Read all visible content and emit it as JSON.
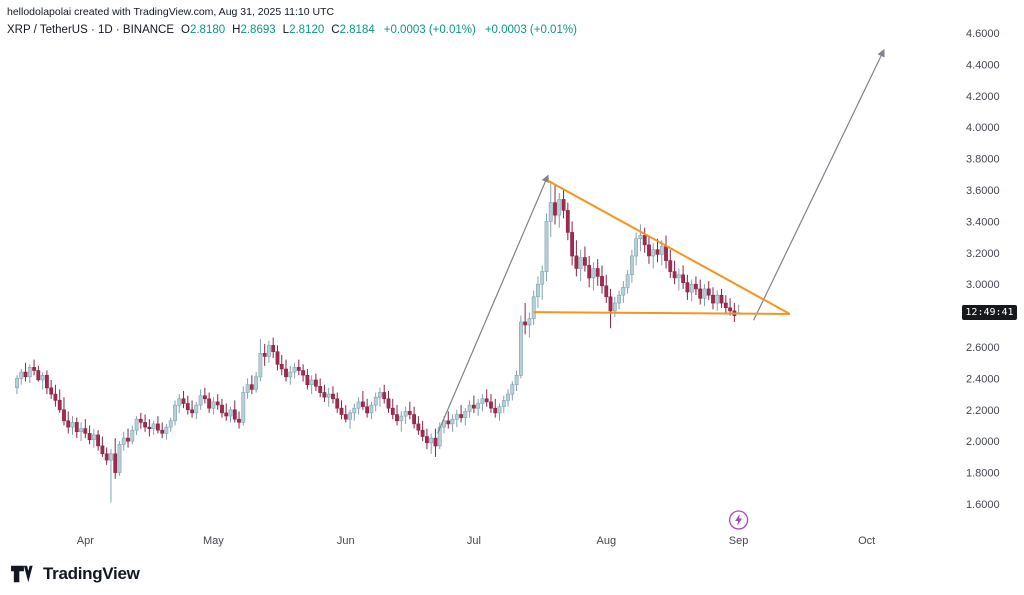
{
  "page": {
    "attribution": "hellodolapolai created with TradingView.com, Aug 31, 2025 11:10 UTC",
    "symbol_title": "XRP / TetherUS · 1D · BINANCE",
    "ohlc": {
      "o_label": "O",
      "o": "2.8180",
      "h_label": "H",
      "h": "2.8693",
      "l_label": "L",
      "l": "2.8120",
      "c_label": "C",
      "c": "2.8184"
    },
    "change_1": "+0.0003 (+0.01%)",
    "change_2": "+0.0003 (+0.01%)",
    "countdown": "12:49:41",
    "logo_text": "TradingView"
  },
  "colors": {
    "up_fill": "#b7cfd6",
    "up_border": "#7fa3ad",
    "down_fill": "#a02b4e",
    "down_border": "#8b2345",
    "pattern_line": "#f7941e",
    "trend_line": "#7e838c",
    "badge_bg": "#16181c",
    "badge_text": "#ffffff",
    "axis_text": "#44474f",
    "accent_marker": "#ab47bc",
    "ohlc_value": "#089981",
    "text": "#131722"
  },
  "chart_data": {
    "type": "candlestick",
    "title": "XRP / TetherUS · 1D · BINANCE",
    "exchange": "BINANCE",
    "interval": "1D",
    "last_price": "2.8184",
    "y_axis": {
      "min": 1.6,
      "max": 4.6,
      "step": 0.2,
      "tick_labels": [
        "4.6000",
        "4.4000",
        "4.2000",
        "4.0000",
        "3.8000",
        "3.6000",
        "3.4000",
        "3.2000",
        "3.0000",
        "2.8000",
        "2.6000",
        "2.4000",
        "2.2000",
        "2.0000",
        "1.8000",
        "1.6000"
      ]
    },
    "x_axis": {
      "month_ticks": [
        {
          "label": "Apr",
          "day": 16
        },
        {
          "label": "May",
          "day": 46
        },
        {
          "label": "Jun",
          "day": 77
        },
        {
          "label": "Jul",
          "day": 107
        },
        {
          "label": "Aug",
          "day": 138
        },
        {
          "label": "Sep",
          "day": 169
        },
        {
          "label": "Oct",
          "day": 199
        }
      ]
    },
    "candles": [
      [
        2.34,
        2.42,
        2.3,
        2.4
      ],
      [
        2.4,
        2.46,
        2.36,
        2.44
      ],
      [
        2.44,
        2.5,
        2.38,
        2.41
      ],
      [
        2.41,
        2.49,
        2.37,
        2.47
      ],
      [
        2.47,
        2.52,
        2.42,
        2.45
      ],
      [
        2.45,
        2.48,
        2.38,
        2.39
      ],
      [
        2.39,
        2.44,
        2.33,
        2.42
      ],
      [
        2.42,
        2.45,
        2.3,
        2.34
      ],
      [
        2.34,
        2.39,
        2.27,
        2.3
      ],
      [
        2.3,
        2.36,
        2.22,
        2.26
      ],
      [
        2.26,
        2.33,
        2.18,
        2.2
      ],
      [
        2.2,
        2.28,
        2.1,
        2.13
      ],
      [
        2.13,
        2.19,
        2.05,
        2.09
      ],
      [
        2.09,
        2.16,
        2.04,
        2.12
      ],
      [
        2.12,
        2.15,
        2.02,
        2.06
      ],
      [
        2.06,
        2.12,
        2.0,
        2.08
      ],
      [
        2.08,
        2.14,
        2.02,
        2.05
      ],
      [
        2.05,
        2.1,
        1.98,
        2.01
      ],
      [
        2.01,
        2.08,
        1.96,
        2.04
      ],
      [
        2.04,
        2.07,
        1.94,
        1.97
      ],
      [
        1.97,
        2.03,
        1.9,
        1.92
      ],
      [
        1.92,
        1.96,
        1.85,
        1.88
      ],
      [
        1.88,
        1.95,
        1.61,
        1.92
      ],
      [
        1.92,
        2.02,
        1.76,
        1.8
      ],
      [
        1.8,
        2.0,
        1.78,
        1.98
      ],
      [
        1.98,
        2.06,
        1.94,
        2.02
      ],
      [
        2.02,
        2.08,
        1.96,
        2.0
      ],
      [
        2.0,
        2.1,
        1.98,
        2.07
      ],
      [
        2.07,
        2.16,
        2.04,
        2.14
      ],
      [
        2.14,
        2.18,
        2.08,
        2.12
      ],
      [
        2.12,
        2.17,
        2.06,
        2.09
      ],
      [
        2.09,
        2.14,
        2.03,
        2.08
      ],
      [
        2.08,
        2.13,
        2.04,
        2.11
      ],
      [
        2.11,
        2.16,
        2.05,
        2.07
      ],
      [
        2.07,
        2.12,
        2.02,
        2.05
      ],
      [
        2.05,
        2.11,
        2.01,
        2.09
      ],
      [
        2.09,
        2.15,
        2.06,
        2.13
      ],
      [
        2.13,
        2.26,
        2.1,
        2.23
      ],
      [
        2.23,
        2.3,
        2.18,
        2.27
      ],
      [
        2.27,
        2.32,
        2.21,
        2.24
      ],
      [
        2.24,
        2.29,
        2.17,
        2.2
      ],
      [
        2.2,
        2.26,
        2.15,
        2.18
      ],
      [
        2.18,
        2.25,
        2.14,
        2.23
      ],
      [
        2.23,
        2.33,
        2.2,
        2.29
      ],
      [
        2.29,
        2.34,
        2.24,
        2.27
      ],
      [
        2.27,
        2.31,
        2.18,
        2.21
      ],
      [
        2.21,
        2.28,
        2.17,
        2.25
      ],
      [
        2.25,
        2.3,
        2.2,
        2.23
      ],
      [
        2.23,
        2.27,
        2.15,
        2.18
      ],
      [
        2.18,
        2.24,
        2.13,
        2.16
      ],
      [
        2.16,
        2.22,
        2.12,
        2.2
      ],
      [
        2.2,
        2.26,
        2.12,
        2.14
      ],
      [
        2.14,
        2.19,
        2.08,
        2.12
      ],
      [
        2.12,
        2.35,
        2.1,
        2.31
      ],
      [
        2.31,
        2.4,
        2.27,
        2.36
      ],
      [
        2.36,
        2.42,
        2.3,
        2.33
      ],
      [
        2.33,
        2.44,
        2.31,
        2.41
      ],
      [
        2.41,
        2.65,
        2.38,
        2.56
      ],
      [
        2.56,
        2.62,
        2.48,
        2.54
      ],
      [
        2.54,
        2.64,
        2.5,
        2.61
      ],
      [
        2.61,
        2.66,
        2.53,
        2.57
      ],
      [
        2.57,
        2.61,
        2.45,
        2.49
      ],
      [
        2.49,
        2.55,
        2.42,
        2.46
      ],
      [
        2.46,
        2.52,
        2.38,
        2.41
      ],
      [
        2.41,
        2.48,
        2.36,
        2.44
      ],
      [
        2.44,
        2.5,
        2.4,
        2.47
      ],
      [
        2.47,
        2.52,
        2.42,
        2.45
      ],
      [
        2.45,
        2.49,
        2.38,
        2.42
      ],
      [
        2.42,
        2.46,
        2.33,
        2.36
      ],
      [
        2.36,
        2.42,
        2.3,
        2.39
      ],
      [
        2.39,
        2.43,
        2.32,
        2.35
      ],
      [
        2.35,
        2.4,
        2.28,
        2.31
      ],
      [
        2.31,
        2.36,
        2.25,
        2.28
      ],
      [
        2.28,
        2.34,
        2.22,
        2.3
      ],
      [
        2.3,
        2.35,
        2.24,
        2.27
      ],
      [
        2.27,
        2.31,
        2.18,
        2.21
      ],
      [
        2.21,
        2.26,
        2.14,
        2.17
      ],
      [
        2.17,
        2.23,
        2.12,
        2.14
      ],
      [
        2.14,
        2.2,
        2.08,
        2.18
      ],
      [
        2.18,
        2.24,
        2.13,
        2.21
      ],
      [
        2.21,
        2.28,
        2.17,
        2.25
      ],
      [
        2.25,
        2.32,
        2.2,
        2.22
      ],
      [
        2.22,
        2.27,
        2.15,
        2.18
      ],
      [
        2.18,
        2.25,
        2.14,
        2.23
      ],
      [
        2.23,
        2.31,
        2.19,
        2.28
      ],
      [
        2.28,
        2.34,
        2.22,
        2.31
      ],
      [
        2.31,
        2.36,
        2.24,
        2.27
      ],
      [
        2.27,
        2.32,
        2.18,
        2.21
      ],
      [
        2.21,
        2.27,
        2.14,
        2.17
      ],
      [
        2.17,
        2.23,
        2.1,
        2.13
      ],
      [
        2.13,
        2.19,
        2.06,
        2.16
      ],
      [
        2.16,
        2.22,
        2.11,
        2.19
      ],
      [
        2.19,
        2.25,
        2.14,
        2.17
      ],
      [
        2.17,
        2.22,
        2.08,
        2.11
      ],
      [
        2.11,
        2.16,
        2.04,
        2.07
      ],
      [
        2.07,
        2.13,
        2.0,
        2.03
      ],
      [
        2.03,
        2.08,
        1.95,
        1.99
      ],
      [
        1.99,
        2.05,
        1.92,
        2.02
      ],
      [
        2.02,
        2.08,
        1.9,
        1.97
      ],
      [
        1.97,
        2.12,
        1.95,
        2.09
      ],
      [
        2.09,
        2.16,
        2.05,
        2.13
      ],
      [
        2.13,
        2.19,
        2.08,
        2.11
      ],
      [
        2.11,
        2.17,
        2.06,
        2.14
      ],
      [
        2.14,
        2.2,
        2.09,
        2.17
      ],
      [
        2.17,
        2.23,
        2.12,
        2.15
      ],
      [
        2.15,
        2.21,
        2.1,
        2.19
      ],
      [
        2.19,
        2.26,
        2.15,
        2.23
      ],
      [
        2.23,
        2.29,
        2.18,
        2.21
      ],
      [
        2.21,
        2.27,
        2.16,
        2.24
      ],
      [
        2.24,
        2.3,
        2.19,
        2.27
      ],
      [
        2.27,
        2.33,
        2.22,
        2.25
      ],
      [
        2.25,
        2.3,
        2.18,
        2.21
      ],
      [
        2.21,
        2.27,
        2.15,
        2.18
      ],
      [
        2.18,
        2.24,
        2.13,
        2.22
      ],
      [
        2.22,
        2.29,
        2.18,
        2.26
      ],
      [
        2.26,
        2.33,
        2.22,
        2.3
      ],
      [
        2.3,
        2.38,
        2.26,
        2.36
      ],
      [
        2.36,
        2.45,
        2.32,
        2.42
      ],
      [
        2.42,
        2.8,
        2.4,
        2.76
      ],
      [
        2.76,
        2.88,
        2.68,
        2.74
      ],
      [
        2.74,
        2.82,
        2.66,
        2.78
      ],
      [
        2.78,
        2.96,
        2.74,
        2.92
      ],
      [
        2.92,
        3.05,
        2.85,
        3.0
      ],
      [
        3.0,
        3.12,
        2.9,
        3.08
      ],
      [
        3.08,
        3.45,
        3.02,
        3.4
      ],
      [
        3.4,
        3.66,
        3.3,
        3.52
      ],
      [
        3.52,
        3.64,
        3.38,
        3.44
      ],
      [
        3.44,
        3.58,
        3.36,
        3.54
      ],
      [
        3.54,
        3.6,
        3.42,
        3.47
      ],
      [
        3.47,
        3.52,
        3.28,
        3.33
      ],
      [
        3.33,
        3.4,
        3.12,
        3.18
      ],
      [
        3.18,
        3.28,
        3.05,
        3.1
      ],
      [
        3.1,
        3.22,
        3.02,
        3.17
      ],
      [
        3.17,
        3.24,
        3.08,
        3.12
      ],
      [
        3.12,
        3.18,
        2.98,
        3.04
      ],
      [
        3.04,
        3.14,
        2.96,
        3.1
      ],
      [
        3.1,
        3.16,
        2.99,
        3.05
      ],
      [
        3.05,
        3.12,
        2.94,
        2.99
      ],
      [
        2.99,
        3.06,
        2.88,
        2.92
      ],
      [
        2.92,
        2.97,
        2.72,
        2.83
      ],
      [
        2.83,
        2.92,
        2.79,
        2.88
      ],
      [
        2.88,
        2.96,
        2.84,
        2.93
      ],
      [
        2.93,
        3.02,
        2.88,
        2.98
      ],
      [
        2.98,
        3.09,
        2.94,
        3.06
      ],
      [
        3.06,
        3.22,
        3.01,
        3.18
      ],
      [
        3.18,
        3.33,
        3.12,
        3.29
      ],
      [
        3.29,
        3.38,
        3.21,
        3.31
      ],
      [
        3.31,
        3.36,
        3.2,
        3.25
      ],
      [
        3.25,
        3.31,
        3.13,
        3.18
      ],
      [
        3.18,
        3.26,
        3.1,
        3.22
      ],
      [
        3.22,
        3.29,
        3.14,
        3.19
      ],
      [
        3.19,
        3.28,
        3.12,
        3.24
      ],
      [
        3.24,
        3.31,
        3.1,
        3.15
      ],
      [
        3.15,
        3.22,
        3.04,
        3.08
      ],
      [
        3.08,
        3.15,
        3.0,
        3.04
      ],
      [
        3.04,
        3.1,
        2.96,
        3.06
      ],
      [
        3.06,
        3.12,
        2.97,
        3.01
      ],
      [
        3.01,
        3.06,
        2.9,
        2.95
      ],
      [
        2.95,
        3.03,
        2.89,
        3.0
      ],
      [
        3.0,
        3.05,
        2.93,
        2.97
      ],
      [
        2.97,
        3.03,
        2.87,
        2.91
      ],
      [
        2.91,
        3.0,
        2.86,
        2.97
      ],
      [
        2.97,
        3.02,
        2.9,
        2.93
      ],
      [
        2.93,
        2.98,
        2.84,
        2.88
      ],
      [
        2.88,
        2.96,
        2.83,
        2.93
      ],
      [
        2.93,
        2.97,
        2.85,
        2.88
      ],
      [
        2.88,
        2.93,
        2.82,
        2.85
      ],
      [
        2.85,
        2.91,
        2.8,
        2.83
      ],
      [
        2.83,
        2.88,
        2.76,
        2.8
      ],
      [
        2.818,
        2.8693,
        2.812,
        2.8184
      ]
    ],
    "annotations": {
      "trendline_up": {
        "from_day": 98.5,
        "from_price": 2.05,
        "to_day": 124.3,
        "to_price": 3.69,
        "style": "arrow",
        "color": "gray"
      },
      "triangle_upper": {
        "from_day": 124.3,
        "from_price": 3.66,
        "to_day": 181,
        "to_price": 2.81,
        "style": "line",
        "color": "orange"
      },
      "triangle_lower": {
        "from_day": 121,
        "from_price": 2.822,
        "to_day": 181,
        "to_price": 2.81,
        "style": "line",
        "color": "orange"
      },
      "projection_arrow": {
        "from_day": 172.5,
        "from_price": 2.77,
        "to_day": 203,
        "to_price": 4.49,
        "style": "arrow",
        "color": "gray"
      },
      "event_marker": {
        "day": 169,
        "glyph": "lightning"
      }
    }
  }
}
